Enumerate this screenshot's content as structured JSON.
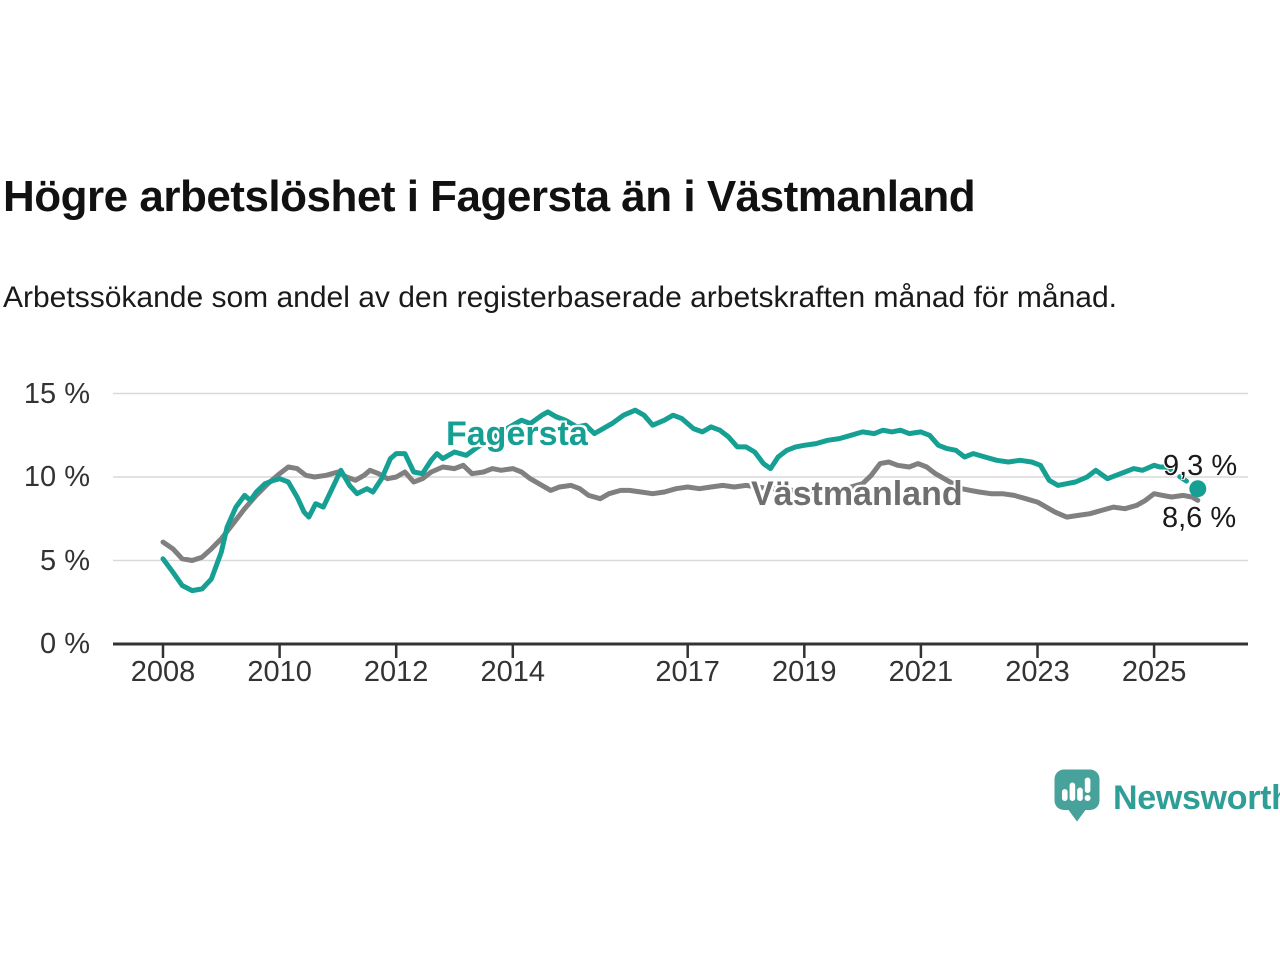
{
  "header": {
    "title": "Högre arbetslöshet i Fagersta än i Västmanland",
    "subtitle": "Arbetssökande som andel av den registerbaserade arbetskraften månad för månad."
  },
  "branding": {
    "logo_text": "Newsworthy",
    "logo_icon": "newsworthy-speech-bubble-bar-chart-icon",
    "logo_text_color": "#2f9e96",
    "logo_icon_color": "#47a29c"
  },
  "chart_data": {
    "type": "line",
    "title": "Högre arbetslöshet i Fagersta än i Västmanland",
    "subtitle": "Arbetssökande som andel av den registerbaserade arbetskraften månad för månad.",
    "grid": "horizontal",
    "legend_position": "inline-labels",
    "x_axis": {
      "range": [
        2007.15,
        2026.6
      ],
      "ticks": [
        {
          "value": 2008,
          "label": "2008"
        },
        {
          "value": 2010,
          "label": "2010"
        },
        {
          "value": 2012,
          "label": "2012"
        },
        {
          "value": 2014,
          "label": "2014"
        },
        {
          "value": 2017,
          "label": "2017"
        },
        {
          "value": 2019,
          "label": "2019"
        },
        {
          "value": 2021,
          "label": "2021"
        },
        {
          "value": 2023,
          "label": "2023"
        },
        {
          "value": 2025,
          "label": "2025"
        }
      ]
    },
    "y_axis": {
      "range": [
        0,
        15
      ],
      "unit": "%",
      "ticks": [
        {
          "value": 0,
          "label": "0 %"
        },
        {
          "value": 5,
          "label": "5 %"
        },
        {
          "value": 10,
          "label": "10 %"
        },
        {
          "value": 15,
          "label": "15 %"
        }
      ]
    },
    "series": [
      {
        "name": "Fagersta",
        "color": "#16a094",
        "end_label": "9,3 %",
        "end_value": 9.3,
        "end_dot": [
          2025.75,
          9.3
        ],
        "dashed_tail": [
          [
            2025.2,
            10.6
          ],
          [
            2025.45,
            10.0
          ],
          [
            2025.75,
            9.3
          ]
        ],
        "points": [
          [
            2008,
            5.1
          ],
          [
            2008.17,
            4.3
          ],
          [
            2008.33,
            3.5
          ],
          [
            2008.5,
            3.2
          ],
          [
            2008.67,
            3.3
          ],
          [
            2008.83,
            3.9
          ],
          [
            2009,
            5.5
          ],
          [
            2009.1,
            7.0
          ],
          [
            2009.25,
            8.2
          ],
          [
            2009.4,
            8.9
          ],
          [
            2009.5,
            8.6
          ],
          [
            2009.6,
            9.1
          ],
          [
            2009.75,
            9.6
          ],
          [
            2009.9,
            9.8
          ],
          [
            2010,
            9.9
          ],
          [
            2010.15,
            9.7
          ],
          [
            2010.3,
            8.8
          ],
          [
            2010.42,
            7.9
          ],
          [
            2010.5,
            7.6
          ],
          [
            2010.62,
            8.4
          ],
          [
            2010.75,
            8.2
          ],
          [
            2010.9,
            9.3
          ],
          [
            2011.05,
            10.4
          ],
          [
            2011.2,
            9.5
          ],
          [
            2011.33,
            9.0
          ],
          [
            2011.5,
            9.3
          ],
          [
            2011.6,
            9.1
          ],
          [
            2011.75,
            9.9
          ],
          [
            2011.9,
            11.1
          ],
          [
            2012,
            11.4
          ],
          [
            2012.15,
            11.4
          ],
          [
            2012.3,
            10.3
          ],
          [
            2012.45,
            10.2
          ],
          [
            2012.6,
            11.0
          ],
          [
            2012.7,
            11.4
          ],
          [
            2012.8,
            11.1
          ],
          [
            2013,
            11.5
          ],
          [
            2013.2,
            11.3
          ],
          [
            2013.4,
            11.8
          ],
          [
            2013.6,
            12.2
          ],
          [
            2013.8,
            12.7
          ],
          [
            2014,
            13.1
          ],
          [
            2014.15,
            13.4
          ],
          [
            2014.3,
            13.2
          ],
          [
            2014.5,
            13.7
          ],
          [
            2014.6,
            13.9
          ],
          [
            2014.75,
            13.6
          ],
          [
            2014.9,
            13.4
          ],
          [
            2015.1,
            13.0
          ],
          [
            2015.25,
            13.1
          ],
          [
            2015.4,
            12.6
          ],
          [
            2015.55,
            12.9
          ],
          [
            2015.7,
            13.2
          ],
          [
            2015.9,
            13.7
          ],
          [
            2016.1,
            14.0
          ],
          [
            2016.25,
            13.7
          ],
          [
            2016.4,
            13.1
          ],
          [
            2016.6,
            13.4
          ],
          [
            2016.75,
            13.7
          ],
          [
            2016.9,
            13.5
          ],
          [
            2017.1,
            12.9
          ],
          [
            2017.25,
            12.7
          ],
          [
            2017.4,
            13.0
          ],
          [
            2017.55,
            12.8
          ],
          [
            2017.7,
            12.4
          ],
          [
            2017.85,
            11.8
          ],
          [
            2018,
            11.8
          ],
          [
            2018.15,
            11.5
          ],
          [
            2018.3,
            10.8
          ],
          [
            2018.42,
            10.5
          ],
          [
            2018.55,
            11.2
          ],
          [
            2018.7,
            11.6
          ],
          [
            2018.85,
            11.8
          ],
          [
            2019,
            11.9
          ],
          [
            2019.2,
            12.0
          ],
          [
            2019.4,
            12.2
          ],
          [
            2019.6,
            12.3
          ],
          [
            2019.8,
            12.5
          ],
          [
            2020,
            12.7
          ],
          [
            2020.2,
            12.6
          ],
          [
            2020.35,
            12.8
          ],
          [
            2020.5,
            12.7
          ],
          [
            2020.65,
            12.8
          ],
          [
            2020.8,
            12.6
          ],
          [
            2021,
            12.7
          ],
          [
            2021.15,
            12.5
          ],
          [
            2021.3,
            11.9
          ],
          [
            2021.45,
            11.7
          ],
          [
            2021.6,
            11.6
          ],
          [
            2021.75,
            11.2
          ],
          [
            2021.9,
            11.4
          ],
          [
            2022.1,
            11.2
          ],
          [
            2022.3,
            11.0
          ],
          [
            2022.5,
            10.9
          ],
          [
            2022.7,
            11.0
          ],
          [
            2022.9,
            10.9
          ],
          [
            2023.05,
            10.7
          ],
          [
            2023.2,
            9.8
          ],
          [
            2023.35,
            9.5
          ],
          [
            2023.5,
            9.6
          ],
          [
            2023.65,
            9.7
          ],
          [
            2023.85,
            10.0
          ],
          [
            2024,
            10.4
          ],
          [
            2024.2,
            9.9
          ],
          [
            2024.35,
            10.1
          ],
          [
            2024.5,
            10.3
          ],
          [
            2024.65,
            10.5
          ],
          [
            2024.8,
            10.4
          ],
          [
            2025,
            10.7
          ],
          [
            2025.1,
            10.6
          ],
          [
            2025.2,
            10.6
          ]
        ]
      },
      {
        "name": "Västmanland",
        "color": "#808080",
        "end_label": "8,6 %",
        "end_value": 8.6,
        "points": [
          [
            2008,
            6.1
          ],
          [
            2008.17,
            5.7
          ],
          [
            2008.33,
            5.1
          ],
          [
            2008.5,
            5.0
          ],
          [
            2008.67,
            5.2
          ],
          [
            2008.83,
            5.7
          ],
          [
            2009,
            6.3
          ],
          [
            2009.2,
            7.2
          ],
          [
            2009.4,
            8.1
          ],
          [
            2009.6,
            8.9
          ],
          [
            2009.8,
            9.6
          ],
          [
            2010,
            10.2
          ],
          [
            2010.15,
            10.6
          ],
          [
            2010.3,
            10.5
          ],
          [
            2010.45,
            10.1
          ],
          [
            2010.6,
            10.0
          ],
          [
            2010.8,
            10.1
          ],
          [
            2011,
            10.3
          ],
          [
            2011.15,
            10.0
          ],
          [
            2011.3,
            9.8
          ],
          [
            2011.45,
            10.1
          ],
          [
            2011.55,
            10.4
          ],
          [
            2011.7,
            10.2
          ],
          [
            2011.85,
            9.9
          ],
          [
            2012,
            10.0
          ],
          [
            2012.15,
            10.3
          ],
          [
            2012.3,
            9.7
          ],
          [
            2012.45,
            9.9
          ],
          [
            2012.6,
            10.3
          ],
          [
            2012.8,
            10.6
          ],
          [
            2013,
            10.5
          ],
          [
            2013.15,
            10.7
          ],
          [
            2013.3,
            10.2
          ],
          [
            2013.5,
            10.3
          ],
          [
            2013.65,
            10.5
          ],
          [
            2013.8,
            10.4
          ],
          [
            2014,
            10.5
          ],
          [
            2014.15,
            10.3
          ],
          [
            2014.3,
            9.9
          ],
          [
            2014.5,
            9.5
          ],
          [
            2014.65,
            9.2
          ],
          [
            2014.8,
            9.4
          ],
          [
            2015,
            9.5
          ],
          [
            2015.15,
            9.3
          ],
          [
            2015.3,
            8.9
          ],
          [
            2015.5,
            8.7
          ],
          [
            2015.65,
            9.0
          ],
          [
            2015.85,
            9.2
          ],
          [
            2016,
            9.2
          ],
          [
            2016.2,
            9.1
          ],
          [
            2016.4,
            9.0
          ],
          [
            2016.6,
            9.1
          ],
          [
            2016.8,
            9.3
          ],
          [
            2017,
            9.4
          ],
          [
            2017.2,
            9.3
          ],
          [
            2017.4,
            9.4
          ],
          [
            2017.6,
            9.5
          ],
          [
            2017.8,
            9.4
          ],
          [
            2018,
            9.5
          ],
          [
            2018.2,
            9.4
          ],
          [
            2018.4,
            9.3
          ],
          [
            2018.6,
            9.3
          ],
          [
            2018.8,
            9.2
          ],
          [
            2019,
            9.1
          ],
          [
            2019.2,
            9.2
          ],
          [
            2019.4,
            9.3
          ],
          [
            2019.6,
            9.2
          ],
          [
            2019.8,
            9.4
          ],
          [
            2020,
            9.6
          ],
          [
            2020.15,
            10.1
          ],
          [
            2020.3,
            10.8
          ],
          [
            2020.45,
            10.9
          ],
          [
            2020.6,
            10.7
          ],
          [
            2020.8,
            10.6
          ],
          [
            2020.95,
            10.8
          ],
          [
            2021.1,
            10.6
          ],
          [
            2021.25,
            10.2
          ],
          [
            2021.4,
            9.9
          ],
          [
            2021.55,
            9.6
          ],
          [
            2021.7,
            9.3
          ],
          [
            2021.85,
            9.2
          ],
          [
            2022,
            9.1
          ],
          [
            2022.2,
            9.0
          ],
          [
            2022.4,
            9.0
          ],
          [
            2022.6,
            8.9
          ],
          [
            2022.8,
            8.7
          ],
          [
            2023,
            8.5
          ],
          [
            2023.15,
            8.2
          ],
          [
            2023.3,
            7.9
          ],
          [
            2023.5,
            7.6
          ],
          [
            2023.7,
            7.7
          ],
          [
            2023.9,
            7.8
          ],
          [
            2024.1,
            8.0
          ],
          [
            2024.3,
            8.2
          ],
          [
            2024.5,
            8.1
          ],
          [
            2024.7,
            8.3
          ],
          [
            2024.85,
            8.6
          ],
          [
            2025,
            9.0
          ],
          [
            2025.15,
            8.9
          ],
          [
            2025.3,
            8.8
          ],
          [
            2025.5,
            8.9
          ],
          [
            2025.65,
            8.8
          ],
          [
            2025.75,
            8.6
          ]
        ]
      }
    ]
  }
}
